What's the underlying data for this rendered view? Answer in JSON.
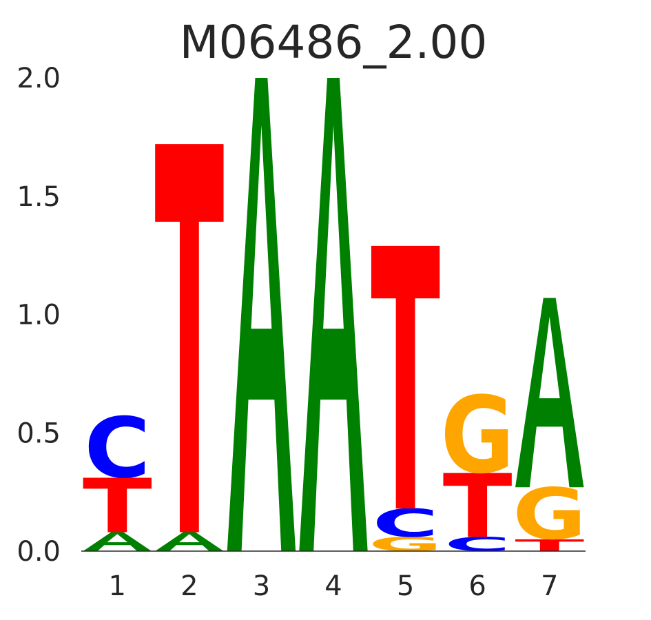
{
  "chart_data": {
    "type": "sequence-logo",
    "title": "M06486_2.00",
    "xlabel": "",
    "ylabel": "",
    "ylim": [
      0,
      2.0
    ],
    "y_ticks": [
      "0.0",
      "0.5",
      "1.0",
      "1.5",
      "2.0"
    ],
    "y_tick_values": [
      0,
      0.5,
      1.0,
      1.5,
      2.0
    ],
    "positions": [
      "1",
      "2",
      "3",
      "4",
      "5",
      "6",
      "7"
    ],
    "grid": false,
    "colors": {
      "A": "#008000",
      "C": "#0000ff",
      "G": "#ffa500",
      "T": "#ff0000"
    },
    "stacks": [
      [
        {
          "letter": "A",
          "height": 0.08
        },
        {
          "letter": "T",
          "height": 0.23
        },
        {
          "letter": "C",
          "height": 0.26
        }
      ],
      [
        {
          "letter": "A",
          "height": 0.08
        },
        {
          "letter": "T",
          "height": 1.64
        }
      ],
      [
        {
          "letter": "A",
          "height": 2.0
        }
      ],
      [
        {
          "letter": "A",
          "height": 2.0
        }
      ],
      [
        {
          "letter": "G",
          "height": 0.06
        },
        {
          "letter": "C",
          "height": 0.12
        },
        {
          "letter": "T",
          "height": 1.11
        }
      ],
      [
        {
          "letter": "C",
          "height": 0.06
        },
        {
          "letter": "T",
          "height": 0.27
        },
        {
          "letter": "G",
          "height": 0.33
        }
      ],
      [
        {
          "letter": "T",
          "height": 0.05
        },
        {
          "letter": "G",
          "height": 0.22
        },
        {
          "letter": "A",
          "height": 0.8
        }
      ]
    ]
  }
}
